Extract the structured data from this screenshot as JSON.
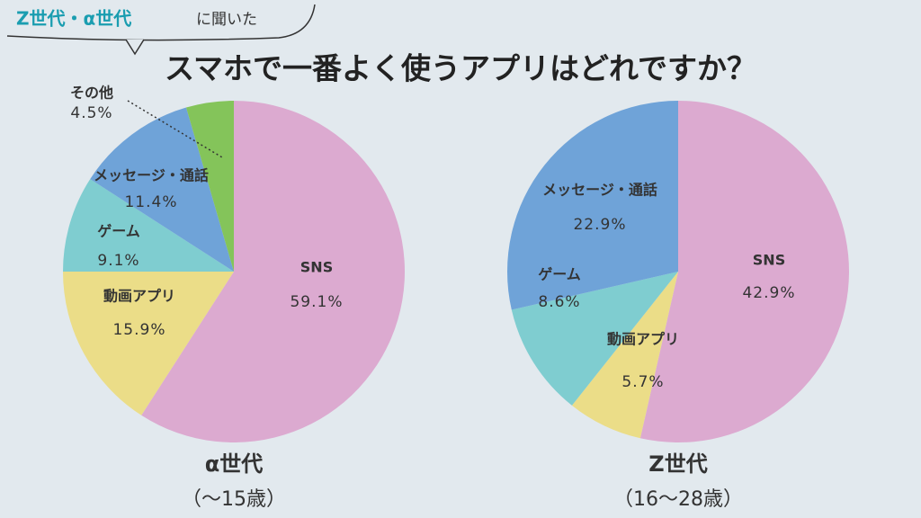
{
  "header": {
    "target": "Z世代・α世代",
    "asked": "に聞いた",
    "title": "スマホで一番よく使うアプリはどれですか？"
  },
  "chart_data": [
    {
      "type": "pie",
      "title": "α世代",
      "subtitle": "（～15歳）",
      "categories": [
        "SNS",
        "動画アプリ",
        "ゲーム",
        "メッセージ・通話",
        "その他"
      ],
      "values": [
        59.1,
        15.9,
        9.1,
        11.4,
        4.5
      ],
      "value_labels": [
        "59.1%",
        "15.9%",
        "9.1%",
        "11.4%",
        "4.5%"
      ],
      "colors": [
        "#dcaad0",
        "#ebdd88",
        "#7fcdd0",
        "#6fa3d8",
        "#84c45a"
      ]
    },
    {
      "type": "pie",
      "title": "Z世代",
      "subtitle": "（16～28歳）",
      "categories": [
        "SNS",
        "動画アプリ",
        "ゲーム",
        "メッセージ・通話"
      ],
      "values": [
        42.9,
        5.7,
        8.6,
        22.9
      ],
      "value_labels": [
        "42.9%",
        "5.7%",
        "8.6%",
        "22.9%"
      ],
      "colors": [
        "#dcaad0",
        "#ebdd88",
        "#7fcdd0",
        "#6fa3d8"
      ]
    }
  ]
}
